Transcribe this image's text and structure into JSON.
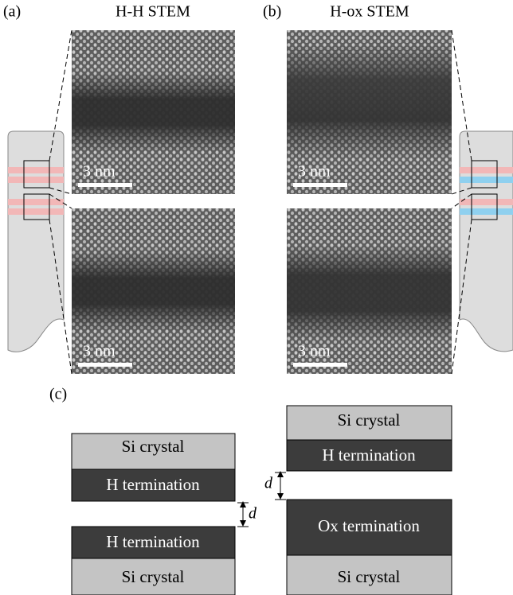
{
  "panel_a": {
    "label": "(a)",
    "title": "H-H STEM",
    "images": [
      {
        "scale_bar": "3 nm"
      },
      {
        "scale_bar": "3 nm"
      }
    ]
  },
  "panel_b": {
    "label": "(b)",
    "title": "H-ox STEM",
    "images": [
      {
        "scale_bar": "3 nm"
      },
      {
        "scale_bar": "3 nm"
      }
    ]
  },
  "panel_c": {
    "label": "(c)",
    "left_stack": {
      "layers": [
        "Si crystal",
        "H termination",
        "H termination",
        "Si crystal"
      ],
      "gap": "d"
    },
    "right_stack": {
      "layers": [
        "Si crystal",
        "H termination",
        "Ox termination",
        "Si crystal"
      ],
      "gap": "d"
    }
  }
}
